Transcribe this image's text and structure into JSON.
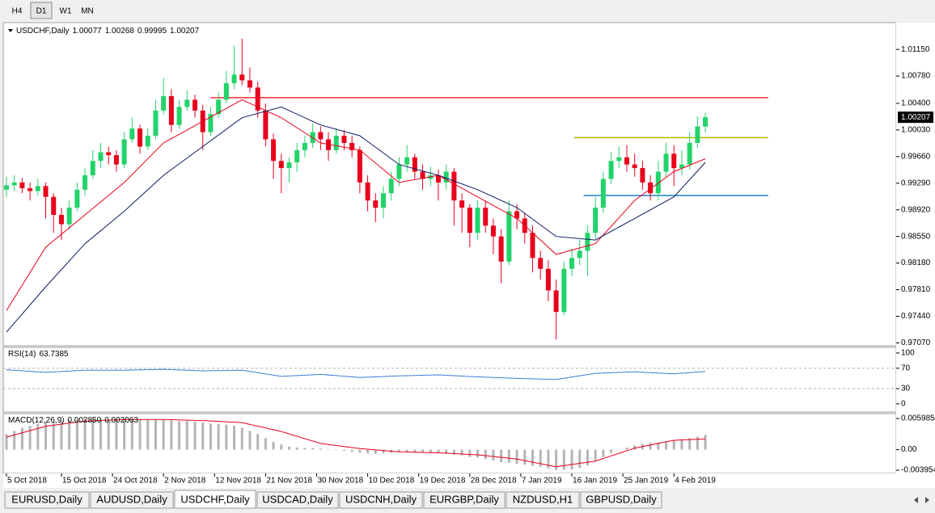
{
  "toolbar": {
    "timeframes": [
      "H4",
      "D1",
      "W1",
      "MN"
    ],
    "active": 1
  },
  "tabs": {
    "items": [
      "EURUSD,Daily",
      "AUDUSD,Daily",
      "USDCHF,Daily",
      "USDCAD,Daily",
      "USDCNH,Daily",
      "EURGBP,Daily",
      "NZDUSD,H1",
      "GBPUSD,Daily"
    ],
    "active": 2
  },
  "chart_data": [
    {
      "type": "candlestick",
      "title": "USDCHF,Daily",
      "up_color": "#22d36a",
      "down_color": "#e8001c",
      "xlim": [
        -0.41,
        113.3
      ],
      "xticks": [
        {
          "value": 0,
          "label": "5 Oct 2018"
        },
        {
          "value": 7,
          "label": "15 Oct 2018"
        },
        {
          "value": 13.5,
          "label": "24 Oct 2018"
        },
        {
          "value": 20,
          "label": "2 Nov 2018"
        },
        {
          "value": 26.5,
          "label": "12 Nov 2018"
        },
        {
          "value": 33,
          "label": "21 Nov 2018"
        },
        {
          "value": 39.5,
          "label": "30 Nov 2018"
        },
        {
          "value": 46,
          "label": "10 Dec 2018"
        },
        {
          "value": 52.5,
          "label": "19 Dec 2018"
        },
        {
          "value": 59,
          "label": "28 Dec 2018"
        },
        {
          "value": 65.5,
          "label": "7 Jan 2019"
        },
        {
          "value": 72,
          "label": "16 Jan 2019"
        },
        {
          "value": 78.5,
          "label": "25 Jan 2019"
        },
        {
          "value": 85,
          "label": "4 Feb 2019"
        }
      ],
      "ylim": [
        0.9703,
        1.015
      ],
      "yticks": [
        {
          "value": 1.0115,
          "label": "1.01150"
        },
        {
          "value": 1.0078,
          "label": "1.00780"
        },
        {
          "value": 1.004,
          "label": "1.00400"
        },
        {
          "value": 1.0003,
          "label": "1.00030"
        },
        {
          "value": 0.9966,
          "label": "0.99660"
        },
        {
          "value": 0.9929,
          "label": "0.99290"
        },
        {
          "value": 0.9892,
          "label": "0.98920"
        },
        {
          "value": 0.9855,
          "label": "0.98550"
        },
        {
          "value": 0.9818,
          "label": "0.98180"
        },
        {
          "value": 0.9781,
          "label": "0.97810"
        },
        {
          "value": 0.9744,
          "label": "0.97440"
        },
        {
          "value": 0.9707,
          "label": "0.97070"
        }
      ],
      "ohlc": [
        [
          0.992,
          0.9938,
          0.991,
          0.9926
        ],
        [
          0.9926,
          0.994,
          0.9918,
          0.993
        ],
        [
          0.993,
          0.9936,
          0.9915,
          0.9922
        ],
        [
          0.9922,
          0.993,
          0.9905,
          0.9918
        ],
        [
          0.9918,
          0.9935,
          0.9912,
          0.9925
        ],
        [
          0.9925,
          0.993,
          0.988,
          0.991
        ],
        [
          0.991,
          0.9915,
          0.986,
          0.9885
        ],
        [
          0.9885,
          0.9895,
          0.985,
          0.9872
        ],
        [
          0.9872,
          0.9905,
          0.9865,
          0.9895
        ],
        [
          0.9895,
          0.993,
          0.989,
          0.992
        ],
        [
          0.992,
          0.995,
          0.9912,
          0.994
        ],
        [
          0.994,
          0.9975,
          0.9935,
          0.996
        ],
        [
          0.996,
          0.9985,
          0.995,
          0.9972
        ],
        [
          0.9972,
          0.998,
          0.9955,
          0.9968
        ],
        [
          0.9968,
          0.9975,
          0.9945,
          0.9955
        ],
        [
          0.9955,
          1.0,
          0.995,
          0.999
        ],
        [
          0.999,
          1.002,
          0.9985,
          1.0005
        ],
        [
          1.0005,
          1.001,
          0.997,
          0.998
        ],
        [
          0.998,
          1.0005,
          0.9975,
          0.9995
        ],
        [
          0.9995,
          1.0045,
          0.999,
          1.003
        ],
        [
          1.003,
          1.0075,
          1.0025,
          1.005
        ],
        [
          1.005,
          1.006,
          1.0,
          1.001
        ],
        [
          1.001,
          1.0045,
          1.0005,
          1.0035
        ],
        [
          1.0035,
          1.0058,
          1.003,
          1.0045
        ],
        [
          1.0045,
          1.0052,
          1.002,
          1.003
        ],
        [
          1.003,
          1.0038,
          0.9975,
          1.0
        ],
        [
          1.0,
          1.0035,
          0.9995,
          1.0025
        ],
        [
          1.0025,
          1.0055,
          1.002,
          1.0045
        ],
        [
          1.0045,
          1.0085,
          1.004,
          1.0068
        ],
        [
          1.0068,
          1.012,
          1.006,
          1.008
        ],
        [
          1.008,
          1.013,
          1.0065,
          1.0072
        ],
        [
          1.0072,
          1.009,
          1.0055,
          1.0062
        ],
        [
          1.0062,
          1.007,
          1.002,
          1.003
        ],
        [
          1.003,
          1.004,
          0.998,
          0.999
        ],
        [
          0.999,
          0.9998,
          0.9935,
          0.996
        ],
        [
          0.996,
          0.997,
          0.9915,
          0.995
        ],
        [
          0.995,
          0.9965,
          0.993,
          0.9958
        ],
        [
          0.9958,
          0.9985,
          0.9945,
          0.9975
        ],
        [
          0.9975,
          0.9995,
          0.9965,
          0.9985
        ],
        [
          0.9985,
          1.0012,
          0.9978,
          1.0
        ],
        [
          1.0,
          1.0008,
          0.9975,
          0.999
        ],
        [
          0.999,
          1.0,
          0.996,
          0.9975
        ],
        [
          0.9975,
          1.0005,
          0.997,
          0.9995
        ],
        [
          0.9995,
          1.0003,
          0.9975,
          0.9985
        ],
        [
          0.9985,
          0.9995,
          0.9965,
          0.9975
        ],
        [
          0.9975,
          0.998,
          0.9915,
          0.993
        ],
        [
          0.993,
          0.994,
          0.989,
          0.9905
        ],
        [
          0.9905,
          0.9915,
          0.9875,
          0.9895
        ],
        [
          0.9895,
          0.9925,
          0.988,
          0.9915
        ],
        [
          0.9915,
          0.9945,
          0.9905,
          0.9935
        ],
        [
          0.9935,
          0.9965,
          0.9925,
          0.9955
        ],
        [
          0.9955,
          0.9982,
          0.9945,
          0.9965
        ],
        [
          0.9965,
          0.997,
          0.9935,
          0.9945
        ],
        [
          0.9945,
          0.9955,
          0.992,
          0.9935
        ],
        [
          0.9935,
          0.9952,
          0.9925,
          0.994
        ],
        [
          0.994,
          0.9948,
          0.9905,
          0.993
        ],
        [
          0.993,
          0.9955,
          0.992,
          0.9945
        ],
        [
          0.9945,
          0.995,
          0.987,
          0.9905
        ],
        [
          0.9905,
          0.9915,
          0.986,
          0.9895
        ],
        [
          0.9895,
          0.99,
          0.984,
          0.986
        ],
        [
          0.986,
          0.9905,
          0.985,
          0.9895
        ],
        [
          0.9895,
          0.9905,
          0.986,
          0.987
        ],
        [
          0.987,
          0.988,
          0.983,
          0.9855
        ],
        [
          0.9855,
          0.9865,
          0.979,
          0.982
        ],
        [
          0.982,
          0.9905,
          0.9815,
          0.989
        ],
        [
          0.989,
          0.99,
          0.9865,
          0.988
        ],
        [
          0.988,
          0.9888,
          0.9845,
          0.986
        ],
        [
          0.986,
          0.987,
          0.9805,
          0.9825
        ],
        [
          0.9825,
          0.9835,
          0.9795,
          0.981
        ],
        [
          0.981,
          0.9822,
          0.9765,
          0.978
        ],
        [
          0.978,
          0.9795,
          0.9712,
          0.975
        ],
        [
          0.975,
          0.982,
          0.9745,
          0.981
        ],
        [
          0.981,
          0.9838,
          0.98,
          0.9825
        ],
        [
          0.9825,
          0.985,
          0.9815,
          0.9835
        ],
        [
          0.9835,
          0.987,
          0.98,
          0.986
        ],
        [
          0.986,
          0.991,
          0.9852,
          0.9895
        ],
        [
          0.9895,
          0.9945,
          0.9888,
          0.9935
        ],
        [
          0.9935,
          0.9972,
          0.9928,
          0.996
        ],
        [
          0.996,
          0.998,
          0.995,
          0.9965
        ],
        [
          0.9965,
          0.9982,
          0.9945,
          0.9955
        ],
        [
          0.9955,
          0.997,
          0.9938,
          0.995
        ],
        [
          0.995,
          0.996,
          0.992,
          0.993
        ],
        [
          0.993,
          0.994,
          0.9905,
          0.9915
        ],
        [
          0.9915,
          0.996,
          0.9905,
          0.9945
        ],
        [
          0.9945,
          0.9985,
          0.9938,
          0.997
        ],
        [
          0.997,
          0.9982,
          0.9925,
          0.995
        ],
        [
          0.995,
          0.9975,
          0.994,
          0.9955
        ],
        [
          0.9955,
          1.0,
          0.9948,
          0.9985
        ],
        [
          0.9985,
          1.0022,
          0.9978,
          1.0008
        ],
        [
          1.00077,
          1.00268,
          0.99995,
          1.00207
        ]
      ],
      "lines": [
        {
          "color": "#e8001c",
          "x": [
            0,
            5,
            10,
            15,
            20,
            25,
            30,
            35,
            40,
            45,
            50,
            55,
            60,
            65,
            70,
            75,
            80,
            85,
            89
          ],
          "values": [
            0.9752,
            0.984,
            0.9885,
            0.993,
            0.9985,
            1.0015,
            1.0045,
            1.002,
            0.9985,
            0.9975,
            0.993,
            0.994,
            0.991,
            0.988,
            0.983,
            0.9845,
            0.9905,
            0.9945,
            0.9963
          ]
        },
        {
          "color": "#0a1a5c",
          "x": [
            0,
            5,
            10,
            15,
            20,
            25,
            30,
            35,
            40,
            45,
            50,
            55,
            60,
            65,
            70,
            75,
            80,
            85,
            89
          ],
          "values": [
            0.9722,
            0.9785,
            0.9845,
            0.989,
            0.994,
            0.998,
            1.002,
            1.0035,
            1.001,
            0.9995,
            0.9955,
            0.994,
            0.992,
            0.9895,
            0.9855,
            0.985,
            0.988,
            0.991,
            0.9958
          ]
        }
      ],
      "hlines": [
        {
          "value": 1.0048,
          "color": "#ff2a2a",
          "from": 26,
          "to": 97
        },
        {
          "value": 0.99923,
          "color": "#b5b800",
          "from": 72.3,
          "to": 97
        },
        {
          "value": 0.99119,
          "color": "#1f7fd0",
          "from": 73.5,
          "to": 97
        }
      ]
    },
    {
      "type": "line",
      "title": "RSI(14)",
      "color": "#3a7fd5",
      "ylim": [
        -16,
        111
      ],
      "yticks": [
        100,
        70,
        30,
        0
      ],
      "levels": [
        70,
        30
      ],
      "x": [
        0,
        5,
        10,
        15,
        20,
        25,
        30,
        35,
        40,
        45,
        50,
        55,
        60,
        65,
        70,
        75,
        80,
        85,
        89
      ],
      "values": [
        67,
        62,
        66,
        66,
        68,
        65,
        66,
        54,
        58,
        52,
        55,
        57,
        53,
        50,
        48,
        60,
        63,
        59,
        63.7385
      ]
    },
    {
      "type": "macd",
      "title": "MACD(12,26,9)",
      "hist_color": "#b4b4b4",
      "signal_color": "#e8001c",
      "ylim": [
        -0.00457,
        0.00693
      ],
      "yticks": [
        0.005985,
        {
          "value": 0,
          "label": "0.00"
        },
        -0.003954
      ],
      "readout": [
        {
          "value": 0.00285,
          "label": "0.002850"
        },
        0.002063
      ],
      "histogram": [
        0.003,
        0.0036,
        0.0042,
        0.0046,
        0.005,
        0.0052,
        0.0054,
        0.0055,
        0.0057,
        0.0058,
        0.0059,
        0.0059,
        0.0059,
        0.0058,
        0.0058,
        0.0058,
        0.0059,
        0.0059,
        0.0058,
        0.0057,
        0.0057,
        0.0056,
        0.0055,
        0.0055,
        0.0054,
        0.0052,
        0.005,
        0.0049,
        0.0048,
        0.0046,
        0.0042,
        0.0036,
        0.003,
        0.0022,
        0.0015,
        0.001,
        0.0006,
        0.0004,
        0.0003,
        0.0003,
        0.0002,
        0.0001,
        0.0,
        -0.0002,
        -0.0004,
        -0.0006,
        -0.0007,
        -0.0008,
        -0.0007,
        -0.0006,
        -0.0005,
        -0.0005,
        -0.0006,
        -0.0006,
        -0.0007,
        -0.0007,
        -0.0008,
        -0.0009,
        -0.0011,
        -0.0014,
        -0.0015,
        -0.0018,
        -0.0021,
        -0.0024,
        -0.0025,
        -0.0027,
        -0.0029,
        -0.0031,
        -0.0033,
        -0.0036,
        -0.0039,
        -0.0039,
        -0.0038,
        -0.0035,
        -0.003,
        -0.0022,
        -0.0014,
        -0.0006,
        0.0,
        0.0004,
        0.0008,
        0.0011,
        0.0013,
        0.0014,
        0.0016,
        0.0018,
        0.002,
        0.0022,
        0.0025,
        0.00285
      ],
      "signal_x": [
        0,
        5,
        10,
        15,
        20,
        25,
        30,
        35,
        40,
        45,
        50,
        55,
        60,
        65,
        70,
        75,
        80,
        85,
        89
      ],
      "signal": [
        0.0024,
        0.0045,
        0.0055,
        0.0058,
        0.0058,
        0.0056,
        0.0052,
        0.0035,
        0.0012,
        0.0002,
        -0.0004,
        -0.0006,
        -0.001,
        -0.0018,
        -0.0033,
        -0.0022,
        0.0003,
        0.0018,
        0.002063
      ]
    }
  ]
}
